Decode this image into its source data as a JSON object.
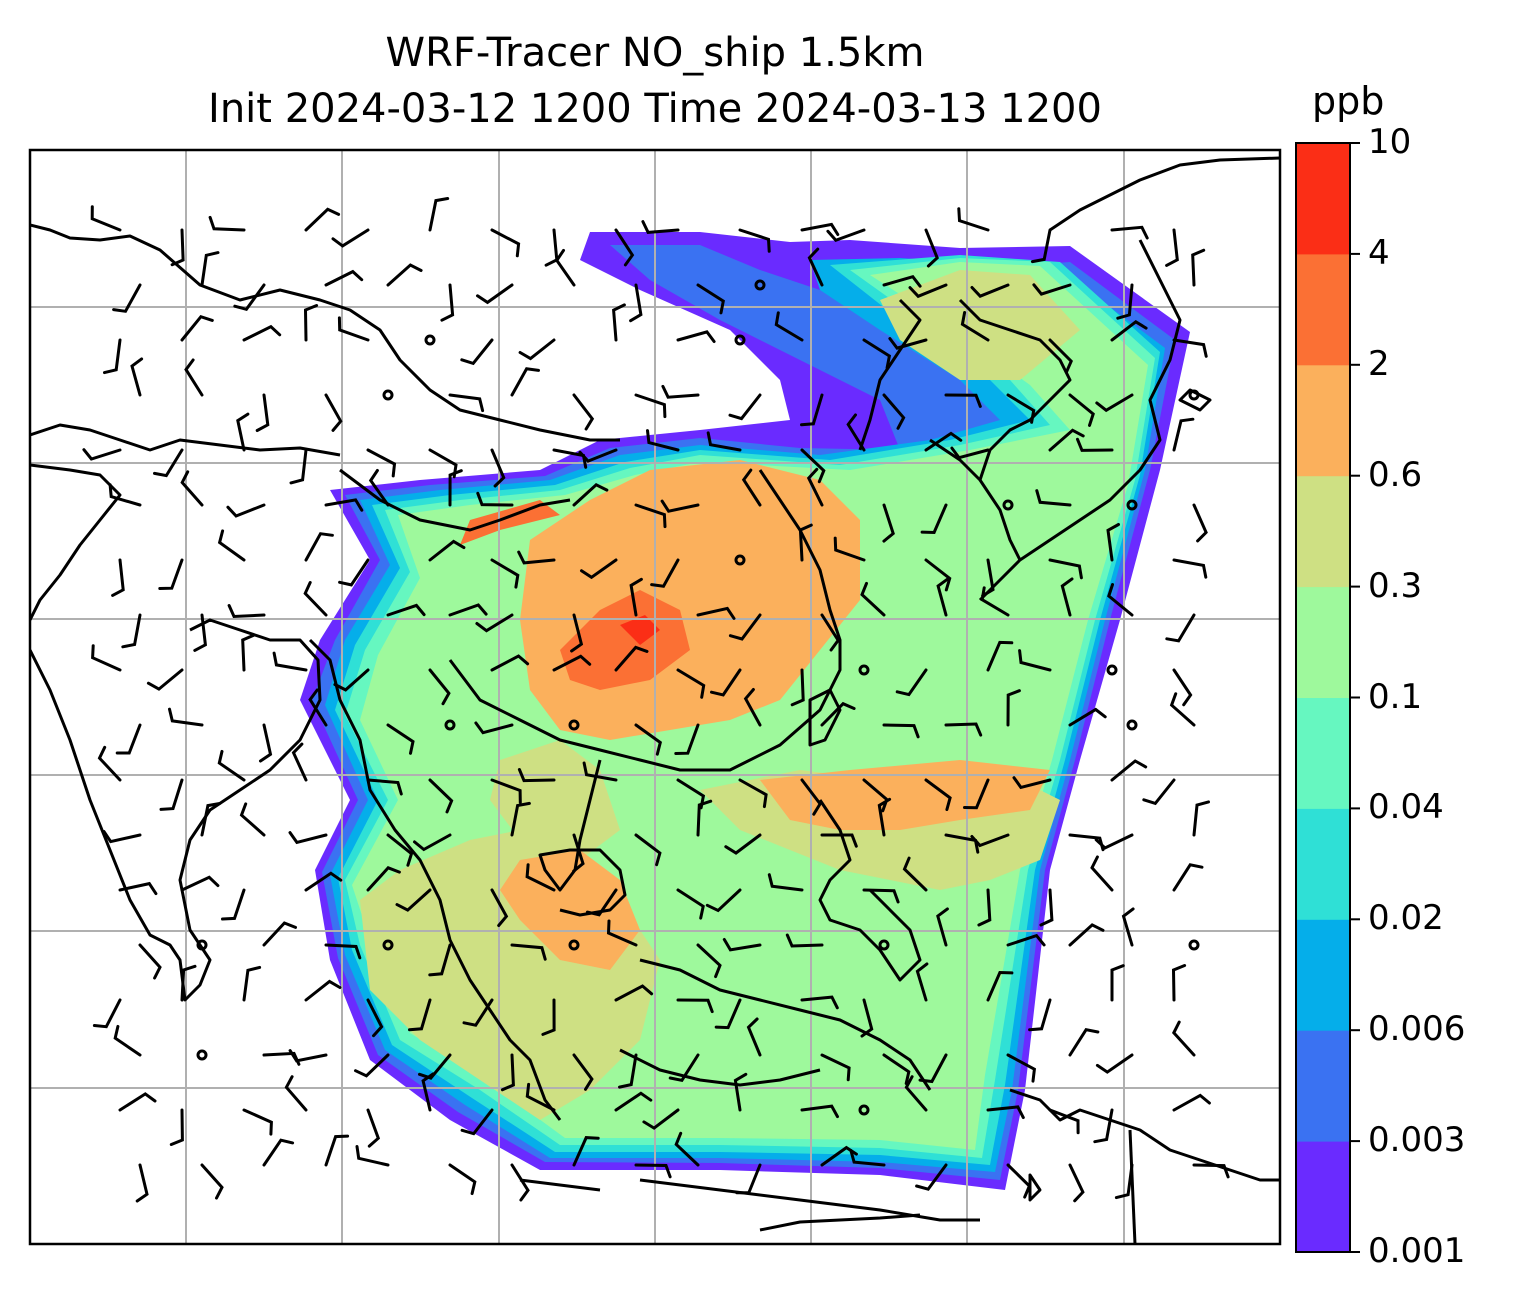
{
  "title": {
    "line1": "WRF-Tracer NO_ship 1.5km",
    "line2": "Init 2024-03-12 1200 Time 2024-03-13 1200"
  },
  "colorbar": {
    "unit": "ppb",
    "ticks": [
      "0.001",
      "0.003",
      "0.006",
      "0.02",
      "0.04",
      "0.1",
      "0.3",
      "0.6",
      "2",
      "4",
      "10"
    ],
    "colors": [
      "#6a2bff",
      "#3a72f2",
      "#05aeea",
      "#2fe0d6",
      "#66f7c0",
      "#9ef99c",
      "#cee083",
      "#fbb05c",
      "#fb7034",
      "#fb2e16"
    ]
  },
  "map": {
    "field": "NO_ship tracer concentration",
    "grid": true,
    "wind_barbs": true
  }
}
